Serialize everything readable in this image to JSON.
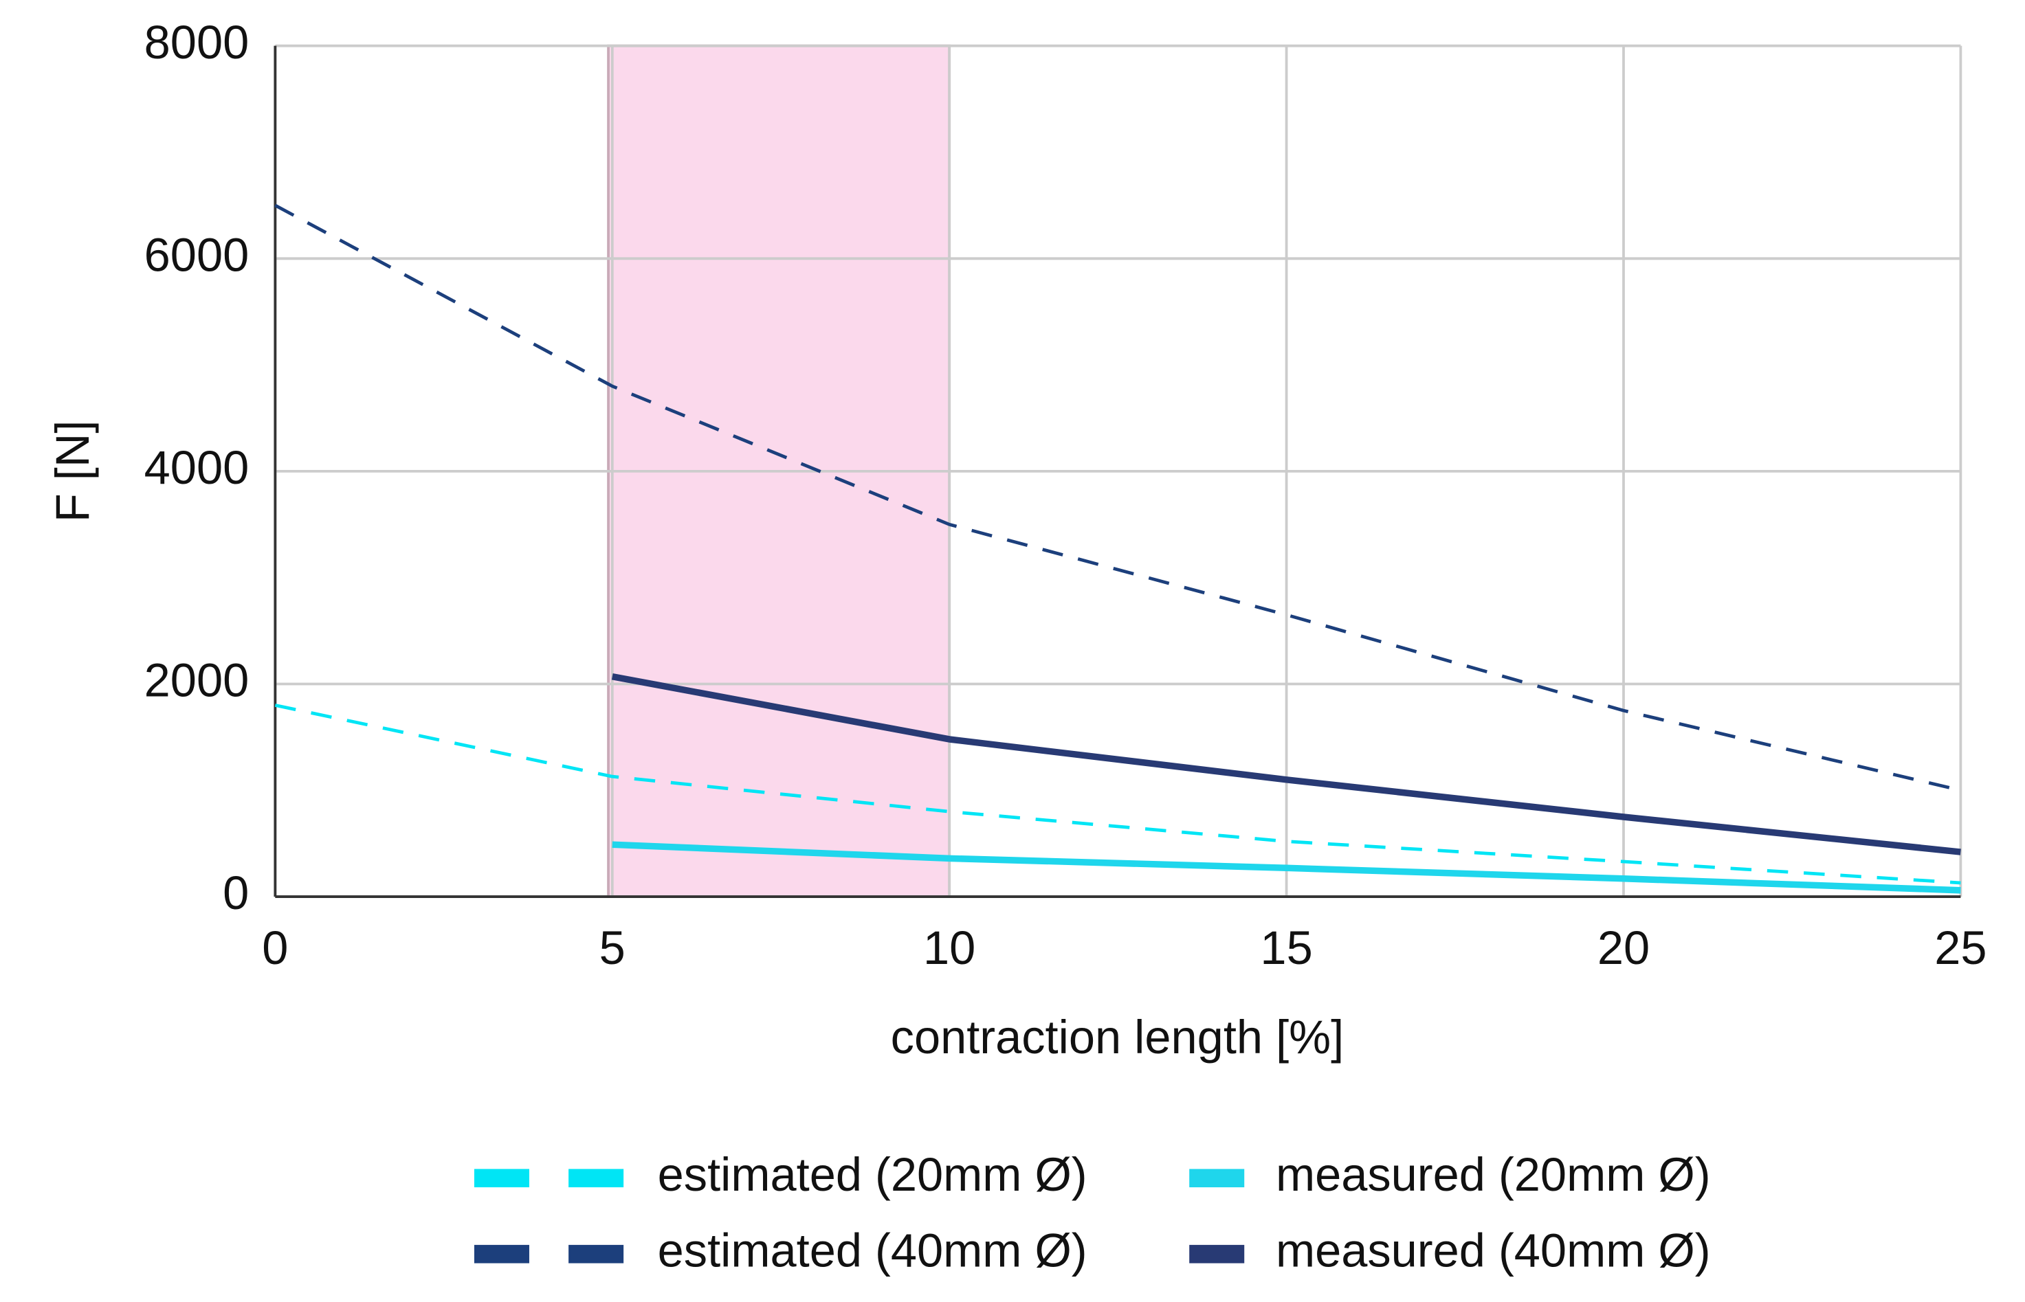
{
  "chart_data": {
    "type": "line",
    "x_label": "contraction length [%]",
    "y_label": "F [N]",
    "x": [
      0,
      5,
      10,
      15,
      20,
      25
    ],
    "series": [
      {
        "name": "estimated (20mm Ø)",
        "color": "#00e5f5",
        "dashed": true,
        "values": [
          1800,
          1130,
          800,
          520,
          330,
          130
        ]
      },
      {
        "name": "measured (20mm Ø)",
        "color": "#1fd6ec",
        "dashed": false,
        "values": [
          null,
          490,
          360,
          270,
          170,
          60
        ]
      },
      {
        "name": "estimated (40mm Ø)",
        "color": "#1c3f7c",
        "dashed": true,
        "values": [
          6500,
          4800,
          3500,
          2650,
          1750,
          1000
        ]
      },
      {
        "name": "measured (40mm Ø)",
        "color": "#283a74",
        "dashed": false,
        "values": [
          null,
          2070,
          1480,
          1100,
          750,
          420
        ]
      }
    ],
    "xlim": [
      0,
      25
    ],
    "xticks": [
      0,
      5,
      10,
      15,
      20,
      25
    ],
    "ylim": [
      0,
      8000
    ],
    "yticks": [
      0,
      2000,
      4000,
      6000,
      8000
    ],
    "grid": true,
    "shaded_x": [
      5,
      10
    ],
    "shade_color": "#fbd9ec",
    "legend": "bottom"
  }
}
